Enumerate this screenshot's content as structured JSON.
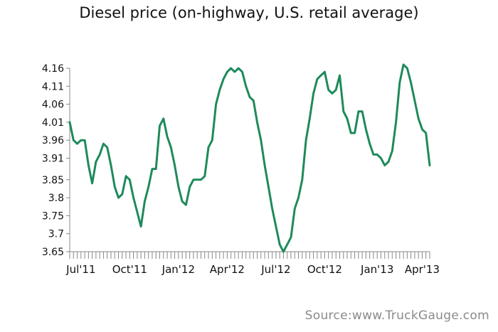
{
  "colors": {
    "line": "#1e8a5a",
    "axis": "#888888"
  },
  "source": "Source:www.TruckGauge.com",
  "chart_data": {
    "type": "line",
    "title": "Diesel price (on-highway, U.S. retail average)",
    "xlabel": "",
    "ylabel": "",
    "ylim": [
      3.65,
      4.16
    ],
    "yticks": [
      "4.16",
      "4.11",
      "4.06",
      "4.01",
      "3.96",
      "3.91",
      "3.85",
      "3.8",
      "3.75",
      "3.7",
      "3.65"
    ],
    "ytick_values": [
      4.16,
      4.11,
      4.06,
      4.01,
      3.96,
      3.91,
      3.85,
      3.8,
      3.75,
      3.7,
      3.65
    ],
    "xticks": [
      {
        "label": "Jul'11",
        "week": 3
      },
      {
        "label": "Oct'11",
        "week": 16
      },
      {
        "label": "Jan'12",
        "week": 29
      },
      {
        "label": "Apr'12",
        "week": 42
      },
      {
        "label": "Jul'12",
        "week": 55
      },
      {
        "label": "Oct'12",
        "week": 68
      },
      {
        "label": "Jan'13",
        "week": 82
      },
      {
        "label": "Apr'13",
        "week": 94
      }
    ],
    "xlim": [
      0,
      96
    ],
    "grid": false,
    "series": [
      {
        "name": "",
        "values": [
          4.01,
          3.96,
          3.95,
          3.96,
          3.96,
          3.89,
          3.84,
          3.9,
          3.92,
          3.95,
          3.94,
          3.89,
          3.83,
          3.8,
          3.81,
          3.86,
          3.85,
          3.8,
          3.76,
          3.72,
          3.79,
          3.83,
          3.88,
          3.88,
          4.0,
          4.02,
          3.97,
          3.94,
          3.89,
          3.83,
          3.79,
          3.78,
          3.83,
          3.85,
          3.85,
          3.85,
          3.86,
          3.94,
          3.96,
          4.06,
          4.1,
          4.13,
          4.15,
          4.16,
          4.15,
          4.16,
          4.15,
          4.11,
          4.08,
          4.07,
          4.01,
          3.96,
          3.89,
          3.83,
          3.77,
          3.72,
          3.67,
          3.65,
          3.67,
          3.69,
          3.77,
          3.8,
          3.85,
          3.96,
          4.02,
          4.09,
          4.13,
          4.14,
          4.15,
          4.1,
          4.09,
          4.1,
          4.14,
          4.04,
          4.02,
          3.98,
          3.98,
          4.04,
          4.04,
          3.99,
          3.95,
          3.92,
          3.92,
          3.91,
          3.89,
          3.9,
          3.93,
          4.01,
          4.12,
          4.17,
          4.16,
          4.12,
          4.07,
          4.02,
          3.99,
          3.98,
          3.89
        ]
      }
    ]
  }
}
